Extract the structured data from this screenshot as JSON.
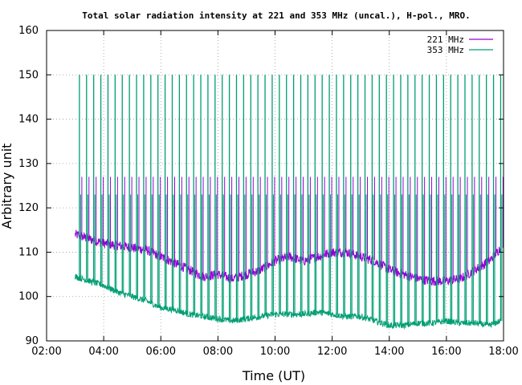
{
  "chart_data": {
    "type": "line",
    "title": "Total solar radiation intensity at 221 and 353 MHz (uncal.), H-pol., MRO.",
    "xlabel": "Time (UT)",
    "ylabel": "Arbitrary unit",
    "xlim": [
      2.0,
      18.0
    ],
    "ylim": [
      90,
      160
    ],
    "x_ticks": [
      "02:00",
      "04:00",
      "06:00",
      "08:00",
      "10:00",
      "12:00",
      "14:00",
      "16:00",
      "18:00"
    ],
    "y_ticks": [
      "90",
      "100",
      "110",
      "120",
      "130",
      "140",
      "150",
      "160"
    ],
    "grid": true,
    "grid_style": "dotted",
    "legend_position": "top-right",
    "colors": {
      "221 MHz": "#9400d3",
      "353 MHz": "#009e73"
    },
    "notes": "Hourly baselines plus periodic calibration spikes (~every 0.25 h) reaching ~150 (353 MHz) and ~125-130 (221 MHz).",
    "series": [
      {
        "name": "221 MHz",
        "x": [
          3.0,
          3.5,
          4.0,
          4.5,
          5.0,
          5.5,
          6.0,
          6.5,
          7.0,
          7.5,
          8.0,
          8.5,
          9.0,
          9.5,
          10.0,
          10.5,
          11.0,
          11.5,
          12.0,
          12.5,
          13.0,
          13.5,
          14.0,
          14.5,
          15.0,
          15.5,
          16.0,
          16.5,
          17.0,
          17.5,
          17.9
        ],
        "values": [
          114,
          113,
          112,
          111.5,
          111,
          110.5,
          109,
          107.5,
          106,
          104.5,
          105,
          104,
          105,
          106,
          108,
          109,
          108,
          109,
          110,
          110,
          109,
          108,
          106,
          105,
          104,
          103.5,
          103.5,
          104,
          106,
          108,
          111
        ]
      },
      {
        "name": "353 MHz",
        "x": [
          3.0,
          3.5,
          4.0,
          4.5,
          5.0,
          5.5,
          6.0,
          6.5,
          7.0,
          7.5,
          8.0,
          8.5,
          9.0,
          9.5,
          10.0,
          10.5,
          11.0,
          11.5,
          12.0,
          12.5,
          13.0,
          13.5,
          14.0,
          14.5,
          15.0,
          15.5,
          16.0,
          16.5,
          17.0,
          17.5,
          17.9
        ],
        "values": [
          104.5,
          103.5,
          102.5,
          101,
          100,
          99,
          97.5,
          97,
          96,
          95.5,
          95,
          94.5,
          95,
          95.5,
          96,
          96,
          96,
          96.5,
          96,
          95.5,
          95.5,
          94.5,
          93.5,
          93.5,
          94,
          94,
          94.5,
          94,
          94,
          93.5,
          94.5
        ]
      }
    ],
    "spikes": {
      "353 MHz": {
        "start": 3.15,
        "step": 0.25,
        "end": 17.95,
        "peak": 150,
        "plateau": 123
      },
      "221 MHz": {
        "start": 3.15,
        "step": 0.25,
        "end": 17.95,
        "peak": 127
      }
    }
  }
}
